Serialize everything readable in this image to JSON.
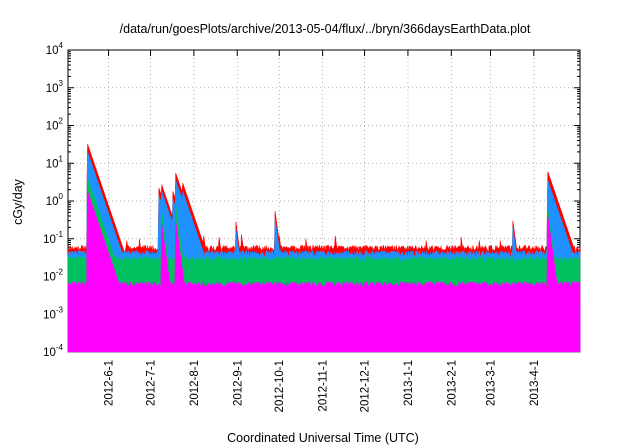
{
  "chart_data": {
    "type": "area",
    "title": "/data/run/goesPlots/archive/2013-05-04/flux/../bryn/366daysEarthData.plot",
    "xlabel": "Coordinated Universal Time (UTC)",
    "ylabel": "cGy/day",
    "yscale": "log",
    "ylim": [
      0.0001,
      10000
    ],
    "xlim": [
      "2012-05-03",
      "2013-05-04"
    ],
    "yticks": [
      {
        "base": "10",
        "exp": "-4",
        "value": 0.0001
      },
      {
        "base": "10",
        "exp": "-3",
        "value": 0.001
      },
      {
        "base": "10",
        "exp": "-2",
        "value": 0.01
      },
      {
        "base": "10",
        "exp": "-1",
        "value": 0.1
      },
      {
        "base": "10",
        "exp": "0",
        "value": 1
      },
      {
        "base": "10",
        "exp": "1",
        "value": 10
      },
      {
        "base": "10",
        "exp": "2",
        "value": 100
      },
      {
        "base": "10",
        "exp": "3",
        "value": 1000
      },
      {
        "base": "10",
        "exp": "4",
        "value": 10000
      }
    ],
    "xticks": [
      {
        "label": "2012-6-1",
        "date": "2012-06-01"
      },
      {
        "label": "2012-7-1",
        "date": "2012-07-01"
      },
      {
        "label": "2012-8-1",
        "date": "2012-08-01"
      },
      {
        "label": "2012-9-1",
        "date": "2012-09-01"
      },
      {
        "label": "2012-10-1",
        "date": "2012-10-01"
      },
      {
        "label": "2012-11-1",
        "date": "2012-11-01"
      },
      {
        "label": "2012-12-1",
        "date": "2012-12-01"
      },
      {
        "label": "2013-1-1",
        "date": "2013-01-01"
      },
      {
        "label": "2013-2-1",
        "date": "2013-02-01"
      },
      {
        "label": "2013-3-1",
        "date": "2013-03-01"
      },
      {
        "label": "2013-4-1",
        "date": "2013-04-01"
      }
    ],
    "grid": true,
    "series": [
      {
        "color": "#ff0000",
        "baseline": 0.055,
        "peaks": [
          [
            "2012-05-17",
            32
          ],
          [
            "2012-05-28",
            0.15
          ],
          [
            "2012-06-02",
            0.11
          ],
          [
            "2012-06-07",
            0.14
          ],
          [
            "2012-06-14",
            0.09
          ],
          [
            "2012-06-23",
            0.1
          ],
          [
            "2012-07-07",
            2.2
          ],
          [
            "2012-07-09",
            2.7
          ],
          [
            "2012-07-12",
            1.2
          ],
          [
            "2012-07-17",
            1.8
          ],
          [
            "2012-07-19",
            5.5
          ],
          [
            "2012-07-21",
            1.6
          ],
          [
            "2012-07-24",
            3.0
          ],
          [
            "2012-08-08",
            0.12
          ],
          [
            "2012-08-19",
            0.11
          ],
          [
            "2012-08-31",
            0.28
          ],
          [
            "2012-09-04",
            0.13
          ],
          [
            "2012-09-28",
            0.55
          ],
          [
            "2012-10-01",
            0.12
          ],
          [
            "2012-10-20",
            0.1
          ],
          [
            "2012-11-10",
            0.12
          ],
          [
            "2013-01-14",
            0.09
          ],
          [
            "2013-02-08",
            0.11
          ],
          [
            "2013-02-21",
            0.09
          ],
          [
            "2013-03-08",
            0.09
          ],
          [
            "2013-03-17",
            0.3
          ],
          [
            "2013-04-11",
            6.0
          ],
          [
            "2013-04-20",
            0.16
          ],
          [
            "2013-04-26",
            0.13
          ]
        ]
      },
      {
        "color": "#1e90ff",
        "baseline": 0.04,
        "peaks": [
          [
            "2012-05-17",
            20
          ],
          [
            "2012-07-07",
            1.4
          ],
          [
            "2012-07-09",
            1.8
          ],
          [
            "2012-07-12",
            0.8
          ],
          [
            "2012-07-17",
            1.1
          ],
          [
            "2012-07-19",
            3.5
          ],
          [
            "2012-07-21",
            1.0
          ],
          [
            "2012-07-24",
            1.8
          ],
          [
            "2012-08-31",
            0.18
          ],
          [
            "2012-09-28",
            0.35
          ],
          [
            "2013-03-17",
            0.2
          ],
          [
            "2013-04-11",
            3.5
          ]
        ]
      },
      {
        "color": "#00c060",
        "baseline": 0.028,
        "peaks": [
          [
            "2012-05-17",
            4
          ],
          [
            "2012-07-09",
            0.5
          ],
          [
            "2012-07-19",
            0.8
          ],
          [
            "2013-04-11",
            0.6
          ]
        ]
      },
      {
        "color": "#ff00ff",
        "baseline": 0.006,
        "peaks": [
          [
            "2012-05-17",
            1.8
          ],
          [
            "2012-07-09",
            0.25
          ],
          [
            "2012-07-19",
            0.3
          ],
          [
            "2013-04-11",
            0.4
          ]
        ]
      }
    ]
  }
}
